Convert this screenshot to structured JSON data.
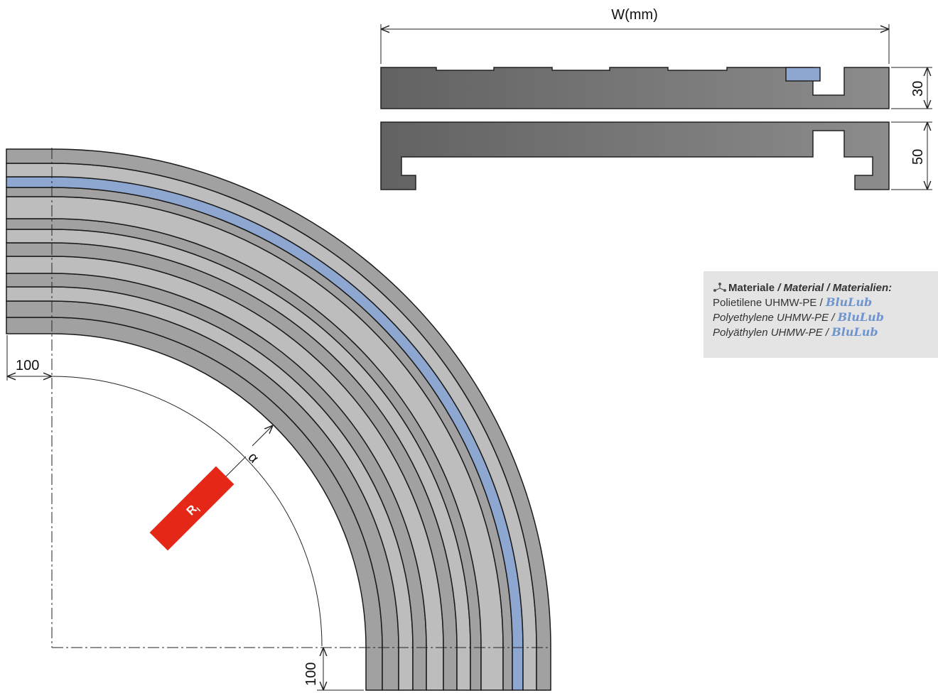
{
  "dimensions": {
    "width_label": "W(mm)",
    "profile_top_height": "30",
    "profile_bottom_height": "50",
    "offset_horizontal": "100",
    "offset_vertical": "100",
    "angle_label": "α",
    "radius_label": "R",
    "radius_subscript": "I"
  },
  "materials": {
    "heading_it": "Materiale",
    "heading_rest": "/ Material / Materialien:",
    "rows": [
      {
        "text": "Polietilene UHMW-PE / ",
        "brand": "BluLub"
      },
      {
        "text": "Polyethylene UHMW-PE / ",
        "brand": "BluLub"
      },
      {
        "text": "Polyäthylen UHMW-PE / ",
        "brand": "BluLub"
      }
    ]
  },
  "colors": {
    "band_dark": "#a1a1a1",
    "band_light": "#bdbdbd",
    "accent_blue": "#8ea7d1",
    "radius_badge": "#e52718",
    "profile_dark": "#626262",
    "profile_light": "#8a8a8a"
  }
}
